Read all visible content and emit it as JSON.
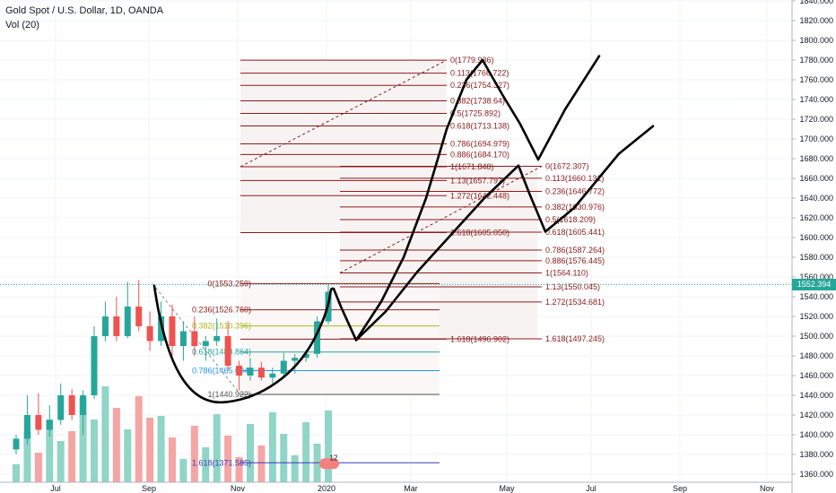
{
  "header": {
    "symbol_title": "Gold Spot / U.S. Dollar, 1D, OANDA",
    "volume_indicator": "Vol (20)"
  },
  "price_tag": {
    "value": "1552.394",
    "color": "#26a69a"
  },
  "colors": {
    "up": "#26a69a",
    "down": "#ef5350",
    "vol_up": "#90d5c7",
    "vol_down": "#f4a6a4",
    "fib": "#8b1a1a",
    "fib_grid": "#e0e3eb",
    "drawing": "#000000"
  },
  "chart_data": {
    "type": "candlestick",
    "title": "Gold Spot / U.S. Dollar, 1D, OANDA",
    "y_axis": {
      "min": 1360,
      "max": 1840,
      "ticks": [
        "1840.000",
        "1820.000",
        "1800.000",
        "1780.000",
        "1760.000",
        "1740.000",
        "1720.000",
        "1700.000",
        "1680.000",
        "1660.000",
        "1640.000",
        "1620.000",
        "1600.000",
        "1580.000",
        "1560.000",
        "1540.000",
        "1520.000",
        "1500.000",
        "1480.000",
        "1460.000",
        "1440.000",
        "1420.000",
        "1400.000",
        "1380.000",
        "1360.000"
      ]
    },
    "x_axis": {
      "ticks": [
        "Jul",
        "Sep",
        "Nov",
        "2020",
        "Mar",
        "May",
        "Jul",
        "Sep",
        "Nov"
      ]
    },
    "last_price": 1552.394,
    "candles_approx": [
      {
        "t": "Jun-19",
        "o": 1385,
        "h": 1400,
        "l": 1380,
        "c": 1396
      },
      {
        "t": "Jun-26",
        "o": 1396,
        "h": 1440,
        "l": 1390,
        "c": 1420
      },
      {
        "t": "Jul-03",
        "o": 1420,
        "h": 1442,
        "l": 1400,
        "c": 1405
      },
      {
        "t": "Jul-10",
        "o": 1405,
        "h": 1430,
        "l": 1398,
        "c": 1415
      },
      {
        "t": "Jul-17",
        "o": 1415,
        "h": 1452,
        "l": 1410,
        "c": 1440
      },
      {
        "t": "Jul-24",
        "o": 1440,
        "h": 1446,
        "l": 1415,
        "c": 1420
      },
      {
        "t": "Jul-31",
        "o": 1420,
        "h": 1445,
        "l": 1400,
        "c": 1440
      },
      {
        "t": "Aug-07",
        "o": 1440,
        "h": 1510,
        "l": 1436,
        "c": 1500
      },
      {
        "t": "Aug-14",
        "o": 1500,
        "h": 1535,
        "l": 1495,
        "c": 1520
      },
      {
        "t": "Aug-21",
        "o": 1520,
        "h": 1540,
        "l": 1495,
        "c": 1500
      },
      {
        "t": "Aug-28",
        "o": 1500,
        "h": 1555,
        "l": 1498,
        "c": 1530
      },
      {
        "t": "Sep-04",
        "o": 1530,
        "h": 1557,
        "l": 1505,
        "c": 1510
      },
      {
        "t": "Sep-11",
        "o": 1510,
        "h": 1525,
        "l": 1485,
        "c": 1495
      },
      {
        "t": "Sep-18",
        "o": 1495,
        "h": 1535,
        "l": 1490,
        "c": 1520
      },
      {
        "t": "Sep-25",
        "o": 1520,
        "h": 1532,
        "l": 1480,
        "c": 1490
      },
      {
        "t": "Oct-02",
        "o": 1490,
        "h": 1515,
        "l": 1475,
        "c": 1505
      },
      {
        "t": "Oct-09",
        "o": 1505,
        "h": 1520,
        "l": 1480,
        "c": 1490
      },
      {
        "t": "Oct-16",
        "o": 1490,
        "h": 1500,
        "l": 1475,
        "c": 1495
      },
      {
        "t": "Oct-23",
        "o": 1495,
        "h": 1518,
        "l": 1490,
        "c": 1500
      },
      {
        "t": "Oct-30",
        "o": 1500,
        "h": 1515,
        "l": 1465,
        "c": 1470
      },
      {
        "t": "Nov-06",
        "o": 1470,
        "h": 1475,
        "l": 1445,
        "c": 1460
      },
      {
        "t": "Nov-13",
        "o": 1460,
        "h": 1478,
        "l": 1455,
        "c": 1468
      },
      {
        "t": "Nov-20",
        "o": 1468,
        "h": 1474,
        "l": 1455,
        "c": 1458
      },
      {
        "t": "Nov-27",
        "o": 1458,
        "h": 1468,
        "l": 1452,
        "c": 1462
      },
      {
        "t": "Dec-04",
        "o": 1462,
        "h": 1483,
        "l": 1458,
        "c": 1475
      },
      {
        "t": "Dec-11",
        "o": 1475,
        "h": 1482,
        "l": 1462,
        "c": 1478
      },
      {
        "t": "Dec-18",
        "o": 1478,
        "h": 1486,
        "l": 1474,
        "c": 1482
      },
      {
        "t": "Dec-25",
        "o": 1482,
        "h": 1520,
        "l": 1478,
        "c": 1515
      },
      {
        "t": "Jan-01",
        "o": 1515,
        "h": 1552,
        "l": 1512,
        "c": 1545
      }
    ],
    "fib_upper": [
      {
        "label": "0(1779.936)",
        "price": 1779.936
      },
      {
        "label": "0.113(1766.722)",
        "price": 1766.722
      },
      {
        "label": "0.236(1754.327)",
        "price": 1754.327
      },
      {
        "label": "0.382(1738.64)",
        "price": 1738.64
      },
      {
        "label": "0.5(1725.892)",
        "price": 1725.892
      },
      {
        "label": "0.618(1713.138)",
        "price": 1713.138
      },
      {
        "label": "0.786(1694.979)",
        "price": 1694.979
      },
      {
        "label": "0.886(1684.170)",
        "price": 1684.17
      },
      {
        "label": "1(1671.848)",
        "price": 1671.848
      },
      {
        "label": "1.13(1657.797)",
        "price": 1657.797
      },
      {
        "label": "1.272(1642.448)",
        "price": 1642.448
      },
      {
        "label": "1.618(1605.050)",
        "price": 1605.05
      }
    ],
    "fib_right": [
      {
        "label": "0(1672.307)",
        "price": 1672.307
      },
      {
        "label": "0.113(1660.131)",
        "price": 1660.131
      },
      {
        "label": "0.236(1646.772)",
        "price": 1646.772
      },
      {
        "label": "0.382(1630.976)",
        "price": 1630.976
      },
      {
        "label": "0.5(1618.209)",
        "price": 1618.209
      },
      {
        "label": "0.618(1605.441)",
        "price": 1605.441
      },
      {
        "label": "0.786(1587.264)",
        "price": 1587.264
      },
      {
        "label": "0.886(1576.445)",
        "price": 1576.445
      },
      {
        "label": "1(1564.110)",
        "price": 1564.11
      },
      {
        "label": "1.13(1550.045)",
        "price": 1550.045
      },
      {
        "label": "1.272(1534.681)",
        "price": 1534.681
      },
      {
        "label": "1.618(1497.245)",
        "price": 1497.245
      }
    ],
    "fib_lower": [
      {
        "label": "0(1553.259)",
        "price": 1553.259,
        "color": "#8b1a1a"
      },
      {
        "label": "0.236(1526.760)",
        "price": 1526.76,
        "color": "#8b1a1a"
      },
      {
        "label": "0.382(1510.396)",
        "price": 1510.396,
        "color": "#a8b820"
      },
      {
        "label": "0.618(1483.864)",
        "price": 1483.864,
        "color": "#26a69a"
      },
      {
        "label": "0.786(1465.004)",
        "price": 1465.004,
        "color": "#2196f3"
      },
      {
        "label": "1(1440.922)",
        "price": 1440.922,
        "color": "#555555"
      },
      {
        "label": "1.618(1371.585)",
        "price": 1371.585,
        "color": "#3d3db8"
      }
    ],
    "fib_mid_label": {
      "label": "1.618(1496.902)",
      "price": 1496.902
    },
    "event_badge": "12"
  }
}
